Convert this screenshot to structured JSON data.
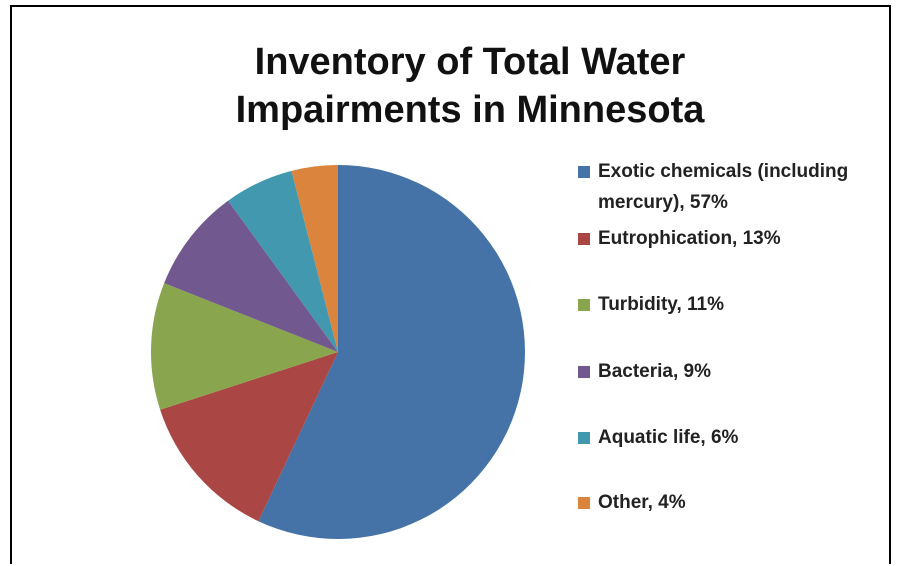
{
  "chart_data": {
    "type": "pie",
    "title": "Inventory of Total Water Impairments in Minnesota",
    "categories": [
      "Exotic chemicals (including mercury), 57%",
      "Eutrophication, 13%",
      "Turbidity, 11%",
      "Bacteria, 9%",
      "Aquatic life, 6%",
      "Other, 4%"
    ],
    "values": [
      57,
      13,
      11,
      9,
      6,
      4
    ],
    "colors": [
      "#4572a7",
      "#aa4643",
      "#89a54e",
      "#71588f",
      "#4198af",
      "#db843d"
    ],
    "legend": "right"
  }
}
